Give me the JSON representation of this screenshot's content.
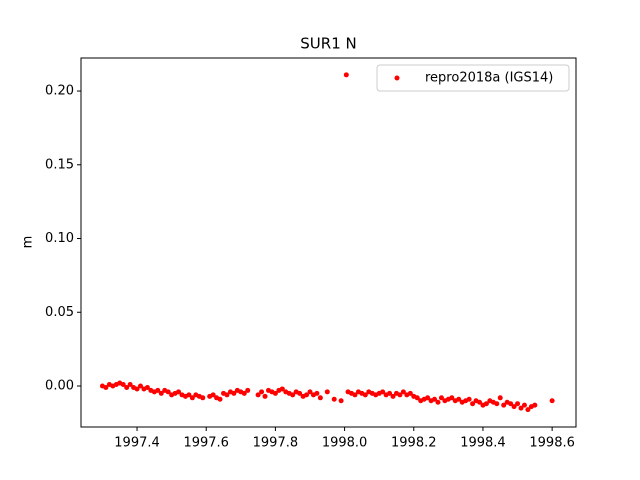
{
  "chart_data": {
    "type": "scatter",
    "title": "SUR1 N",
    "ylabel": "m",
    "legend": "upper right",
    "series": [
      {
        "name": "repro2018a (IGS14)",
        "color": "#ff0000",
        "x": [
          1997.3,
          1997.31,
          1997.32,
          1997.33,
          1997.34,
          1997.35,
          1997.36,
          1997.37,
          1997.38,
          1997.39,
          1997.4,
          1997.41,
          1997.42,
          1997.43,
          1997.44,
          1997.45,
          1997.46,
          1997.47,
          1997.48,
          1997.49,
          1997.5,
          1997.51,
          1997.52,
          1997.53,
          1997.54,
          1997.55,
          1997.56,
          1997.57,
          1997.58,
          1997.59,
          1997.61,
          1997.62,
          1997.63,
          1997.64,
          1997.65,
          1997.66,
          1997.67,
          1997.68,
          1997.69,
          1997.7,
          1997.71,
          1997.72,
          1997.75,
          1997.76,
          1997.77,
          1997.78,
          1997.79,
          1997.8,
          1997.81,
          1997.82,
          1997.83,
          1997.84,
          1997.85,
          1997.86,
          1997.87,
          1997.88,
          1997.89,
          1997.9,
          1997.91,
          1997.92,
          1997.93,
          1997.95,
          1997.97,
          1997.99,
          1998.005,
          1998.01,
          1998.02,
          1998.03,
          1998.04,
          1998.05,
          1998.06,
          1998.07,
          1998.08,
          1998.09,
          1998.1,
          1998.11,
          1998.12,
          1998.13,
          1998.14,
          1998.15,
          1998.16,
          1998.17,
          1998.18,
          1998.19,
          1998.2,
          1998.21,
          1998.22,
          1998.23,
          1998.24,
          1998.25,
          1998.26,
          1998.27,
          1998.28,
          1998.29,
          1998.3,
          1998.31,
          1998.32,
          1998.33,
          1998.34,
          1998.35,
          1998.36,
          1998.37,
          1998.38,
          1998.39,
          1998.4,
          1998.41,
          1998.42,
          1998.43,
          1998.44,
          1998.45,
          1998.46,
          1998.47,
          1998.48,
          1998.49,
          1998.5,
          1998.51,
          1998.52,
          1998.53,
          1998.54,
          1998.55,
          1998.6
        ],
        "values": [
          0.0,
          -0.001,
          0.001,
          0.0,
          0.001,
          0.002,
          0.001,
          -0.001,
          0.001,
          -0.001,
          -0.002,
          0.0,
          -0.002,
          -0.001,
          -0.003,
          -0.004,
          -0.003,
          -0.005,
          -0.003,
          -0.004,
          -0.006,
          -0.005,
          -0.004,
          -0.006,
          -0.007,
          -0.006,
          -0.008,
          -0.006,
          -0.007,
          -0.008,
          -0.007,
          -0.006,
          -0.008,
          -0.009,
          -0.005,
          -0.006,
          -0.004,
          -0.005,
          -0.003,
          -0.004,
          -0.005,
          -0.003,
          -0.006,
          -0.004,
          -0.007,
          -0.003,
          -0.004,
          -0.005,
          -0.003,
          -0.002,
          -0.004,
          -0.005,
          -0.006,
          -0.004,
          -0.005,
          -0.007,
          -0.006,
          -0.004,
          -0.006,
          -0.005,
          -0.008,
          -0.004,
          -0.009,
          -0.01,
          0.211,
          -0.004,
          -0.005,
          -0.006,
          -0.004,
          -0.005,
          -0.006,
          -0.004,
          -0.005,
          -0.006,
          -0.005,
          -0.004,
          -0.006,
          -0.005,
          -0.007,
          -0.005,
          -0.006,
          -0.004,
          -0.006,
          -0.005,
          -0.007,
          -0.008,
          -0.01,
          -0.009,
          -0.008,
          -0.01,
          -0.009,
          -0.011,
          -0.008,
          -0.01,
          -0.009,
          -0.008,
          -0.01,
          -0.009,
          -0.011,
          -0.01,
          -0.009,
          -0.012,
          -0.01,
          -0.011,
          -0.013,
          -0.012,
          -0.01,
          -0.011,
          -0.012,
          -0.008,
          -0.013,
          -0.011,
          -0.012,
          -0.014,
          -0.012,
          -0.015,
          -0.013,
          -0.016,
          -0.014,
          -0.013,
          -0.01
        ]
      }
    ],
    "xlim": [
      1997.238,
      1998.669
    ],
    "xticks": [
      1997.4,
      1997.6,
      1997.8,
      {
        "value": 1998.0,
        "label": "1998.0"
      },
      1998.2,
      1998.4,
      1998.6
    ],
    "ylim": [
      -0.0278,
      0.2224
    ],
    "yticks": [
      {
        "value": 0.0,
        "label": "0.00"
      },
      0.05,
      {
        "value": 0.1,
        "label": "0.10"
      },
      0.15,
      {
        "value": 0.2,
        "label": "0.20"
      }
    ]
  }
}
